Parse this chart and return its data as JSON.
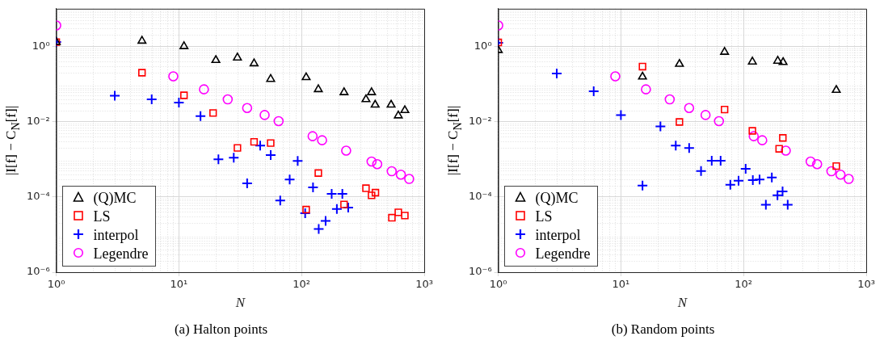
{
  "chart_data": [
    {
      "type": "scatter",
      "xlabel": "N",
      "ylabel": "|I[f] − C$_{N}$[f]|",
      "log": "xy",
      "grid": true,
      "legend": "bottom left",
      "xlim": [
        1,
        1000
      ],
      "ylim": [
        1e-06,
        10
      ],
      "xticks": [
        {
          "value": 1,
          "label": "10⁰"
        },
        {
          "value": 10,
          "label": "10¹"
        },
        {
          "value": 100,
          "label": "10²"
        },
        {
          "value": 1000,
          "label": "10³"
        }
      ],
      "yticks": [
        {
          "value": 1e-06,
          "label": "10⁻⁶"
        },
        {
          "value": 0.0001,
          "label": "10⁻⁴"
        },
        {
          "value": 0.01,
          "label": "10⁻²"
        },
        {
          "value": 1,
          "label": "10⁰"
        }
      ],
      "annotations": [
        "(a) Halton points"
      ],
      "series": [
        {
          "name": "(Q)MC",
          "color": "#000000",
          "marker": "triangle",
          "x": [
            1,
            5,
            11,
            20,
            30,
            41,
            56,
            109,
            137,
            222,
            372,
            335,
            398,
            537,
            695,
            615
          ],
          "values": [
            1.3,
            1.4,
            1.0,
            0.43,
            0.5,
            0.35,
            0.135,
            0.15,
            0.072,
            0.06,
            0.06,
            0.039,
            0.028,
            0.028,
            0.02,
            0.0145
          ]
        },
        {
          "name": "LS",
          "color": "#ff0000",
          "marker": "square",
          "x": [
            1,
            5,
            11,
            19,
            30,
            41,
            56,
            137,
            109,
            222,
            335,
            372,
            400,
            545,
            615,
            695
          ],
          "values": [
            1.3,
            0.2,
            0.05,
            0.017,
            0.002,
            0.0029,
            0.0027,
            0.00043,
            4.6e-05,
            6.3e-05,
            0.00017,
            0.00011,
            0.00013,
            2.8e-05,
            3.9e-05,
            3.2e-05
          ]
        },
        {
          "name": "interpol",
          "color": "#0000ff",
          "marker": "cross",
          "x": [
            1,
            3,
            6,
            10,
            15,
            21,
            28,
            46,
            56,
            36,
            93,
            80,
            67,
            124,
            107,
            138,
            157,
            176,
            215,
            194,
            240
          ],
          "values": [
            1.3,
            0.049,
            0.039,
            0.032,
            0.014,
            0.001,
            0.0011,
            0.0023,
            0.0013,
            0.00023,
            0.0009,
            0.00029,
            8e-05,
            0.00018,
            3.7e-05,
            1.4e-05,
            2.3e-05,
            0.00012,
            0.00012,
            4.8e-05,
            5.2e-05
          ]
        },
        {
          "name": "Legendre",
          "color": "#ff00ff",
          "marker": "circle",
          "x": [
            1,
            9,
            16,
            25,
            36,
            50,
            65,
            123,
            147,
            231,
            372,
            414,
            543,
            645,
            754
          ],
          "values": [
            3.6,
            0.16,
            0.072,
            0.039,
            0.023,
            0.015,
            0.0103,
            0.0041,
            0.0032,
            0.0017,
            0.00087,
            0.00074,
            0.00048,
            0.00039,
            0.0003
          ]
        }
      ]
    },
    {
      "type": "scatter",
      "xlabel": "N",
      "ylabel": "|I[f] − C$_{N}$[f]|",
      "log": "xy",
      "grid": true,
      "legend": "bottom left",
      "xlim": [
        1,
        1000
      ],
      "ylim": [
        1e-06,
        10
      ],
      "xticks": [
        {
          "value": 1,
          "label": "10⁰"
        },
        {
          "value": 10,
          "label": "10¹"
        },
        {
          "value": 100,
          "label": "10²"
        },
        {
          "value": 1000,
          "label": "10³"
        }
      ],
      "yticks": [
        {
          "value": 1e-06,
          "label": "10⁻⁶"
        },
        {
          "value": 0.0001,
          "label": "10⁻⁴"
        },
        {
          "value": 0.01,
          "label": "10⁻²"
        },
        {
          "value": 1,
          "label": "10⁰"
        }
      ],
      "annotations": [
        "(b) Random points"
      ],
      "series": [
        {
          "name": "(Q)MC",
          "color": "#000000",
          "marker": "triangle",
          "x": [
            1,
            15,
            30,
            70,
            118,
            190,
            210,
            570
          ],
          "values": [
            0.79,
            0.156,
            0.34,
            0.71,
            0.39,
            0.41,
            0.38,
            0.069
          ]
        },
        {
          "name": "LS",
          "color": "#ff0000",
          "marker": "square",
          "x": [
            1,
            15,
            30,
            70,
            118,
            209,
            195,
            570
          ],
          "values": [
            1.27,
            0.29,
            0.0098,
            0.021,
            0.0057,
            0.0037,
            0.0019,
            0.00066
          ]
        },
        {
          "name": "interpol",
          "color": "#0000ff",
          "marker": "cross",
          "x": [
            1,
            3,
            6,
            10,
            15,
            21,
            28,
            36,
            45,
            55,
            65,
            78,
            91,
            104,
            119,
            135,
            152,
            170,
            189,
            208,
            229
          ],
          "values": [
            1.25,
            0.19,
            0.064,
            0.015,
            0.0002,
            0.0075,
            0.0023,
            0.002,
            0.00049,
            0.00091,
            0.00091,
            0.00021,
            0.00027,
            0.00056,
            0.00028,
            0.00029,
            6.2e-05,
            0.00033,
            0.00011,
            0.00014,
            6.2e-05
          ]
        },
        {
          "name": "Legendre",
          "color": "#ff00ff",
          "marker": "circle",
          "x": [
            1,
            9,
            16,
            25,
            36,
            49,
            63,
            121,
            142,
            221,
            352,
            398,
            520,
            617,
            720
          ],
          "values": [
            3.6,
            0.16,
            0.072,
            0.039,
            0.023,
            0.015,
            0.0103,
            0.0041,
            0.0032,
            0.0017,
            0.00087,
            0.00074,
            0.00048,
            0.00039,
            0.0003
          ]
        }
      ]
    }
  ]
}
